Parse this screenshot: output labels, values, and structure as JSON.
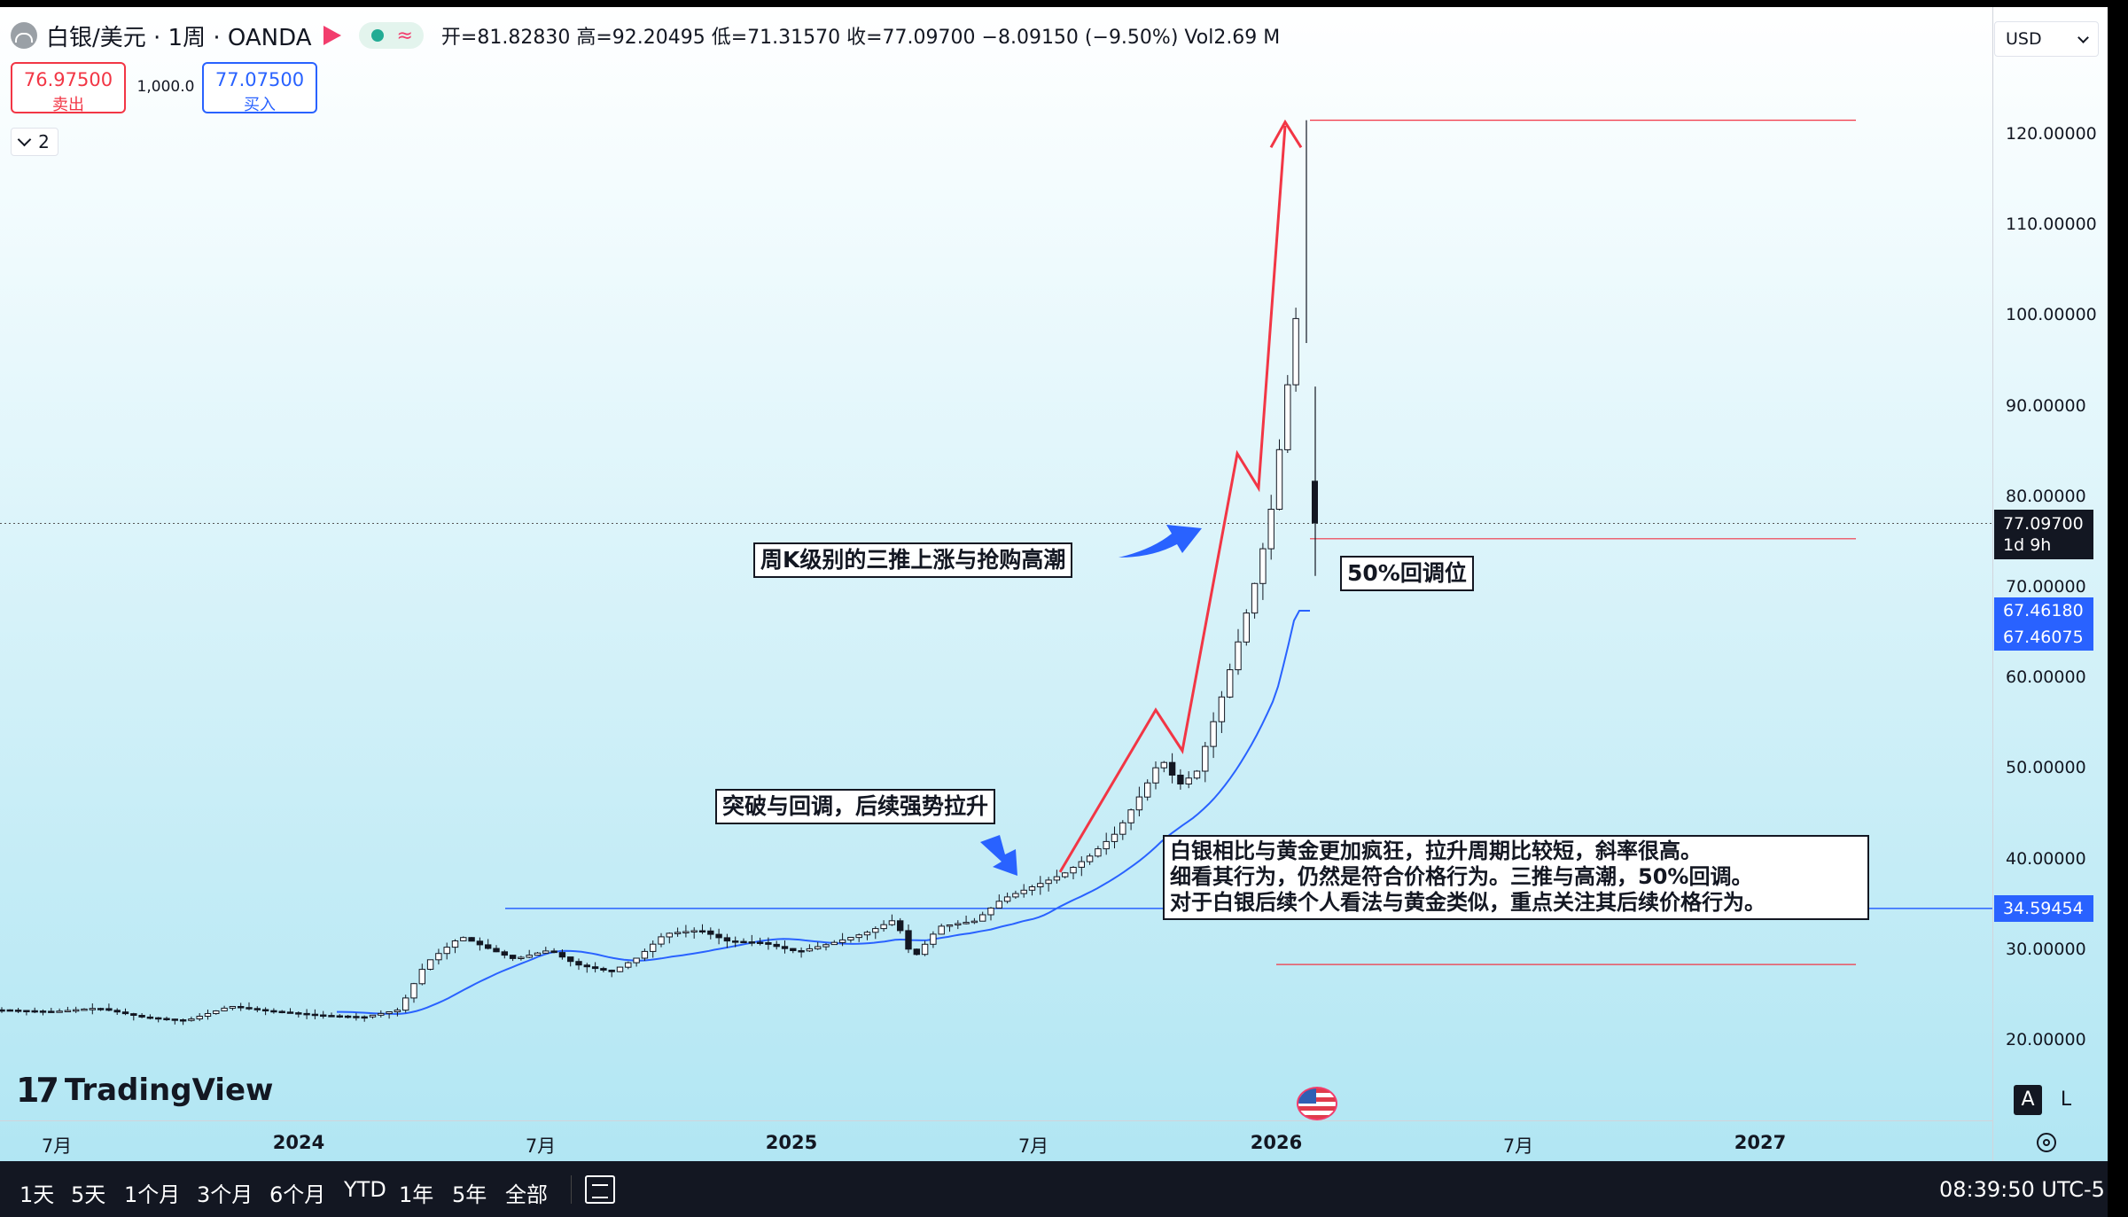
{
  "header": {
    "symbol_title": "白银/美元 · 1周 · OANDA",
    "ohlc_text": "开=81.82830 高=92.20495 低=71.31570 收=77.09700 −8.09150 (−9.50%) Vol2.69 M",
    "open": 81.8283,
    "high": 92.20495,
    "low": 71.3157,
    "close": 77.097,
    "change": -8.0915,
    "change_pct": -9.5,
    "sell_price": "76.97500",
    "sell_label": "卖出",
    "buy_price": "77.07500",
    "buy_label": "买入",
    "quantity": "1,000.0",
    "indicator_count": "2",
    "currency": "USD"
  },
  "price_axis": {
    "ticks": [
      "120.00000",
      "110.00000",
      "100.00000",
      "90.00000",
      "80.00000",
      "70.00000",
      "60.00000",
      "50.00000",
      "40.00000",
      "30.00000",
      "20.00000"
    ],
    "tick_values": [
      120,
      110,
      100,
      90,
      80,
      70,
      60,
      50,
      40,
      30,
      20
    ],
    "current_price_label": "77.09700",
    "countdown_label": "1d 9h",
    "ma_labels": [
      "67.46180",
      "67.46075"
    ],
    "hline_label": "34.59454"
  },
  "time_axis": {
    "labels": [
      "7月",
      "2024",
      "7月",
      "2025",
      "7月",
      "2026",
      "7月",
      "2027"
    ],
    "bold": [
      false,
      true,
      false,
      true,
      false,
      true,
      false,
      true
    ]
  },
  "annotations": {
    "note1": "周K级别的三推上涨与抢购高潮",
    "note2": "50%回调位",
    "note3": "突破与回调，后续强势拉升",
    "note4_lines": [
      "白银相比与黄金更加疯狂，拉升周期比较短，斜率很高。",
      "细看其行为，仍然是符合价格行为。三推与高潮，50%回调。",
      "对于白银后续个人看法与黄金类似，重点关注其后续价格行为。"
    ]
  },
  "axis_buttons": {
    "auto": "A",
    "log": "L"
  },
  "logo": {
    "text": "TradingView"
  },
  "bottom_bar": {
    "ranges": [
      "1天",
      "5天",
      "1个月",
      "3个月",
      "6个月",
      "YTD",
      "1年",
      "5年",
      "全部"
    ],
    "clock": "08:39:50 UTC-5"
  },
  "icons": [
    "symbol-logo-icon",
    "flag-icon",
    "status-dot-icon",
    "wave-icon",
    "chevron-down-icon",
    "us-flag-icon",
    "settings-icon",
    "compare-icon",
    "tradingview-logo-icon"
  ],
  "colors": {
    "up": "#26a69a",
    "down": "#131722",
    "ma": "#2962ff",
    "trend": "#f23645",
    "sell": "#f23645",
    "buy": "#2962ff"
  },
  "chart_data": {
    "type": "candlestick",
    "interval": "1W",
    "y_range": [
      12,
      128
    ],
    "ohlc_description": "weekly candles, Jun 2023 – Jan 2026",
    "levels": {
      "high_line": 121.6,
      "retracement_50": 75.4,
      "low_line": 28.4,
      "support_line": 34.59454,
      "current_price": 77.097
    },
    "moving_average_last": 67.4618
  }
}
